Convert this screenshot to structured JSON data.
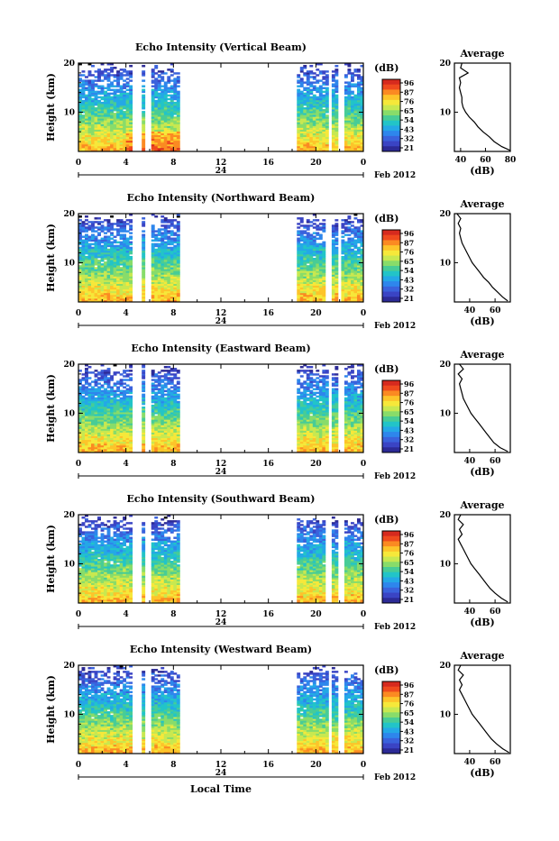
{
  "footer": {
    "xlabel": "Local Time"
  },
  "colorbar": {
    "unit": "(dB)",
    "ticks": [
      "96",
      "87",
      "76",
      "65",
      "54",
      "43",
      "32",
      "21"
    ],
    "colors": [
      "#d62a1e",
      "#ef4a1e",
      "#fb8a22",
      "#fdc42a",
      "#f6e83a",
      "#c8e850",
      "#88dc6a",
      "#48cc96",
      "#22c4c8",
      "#24a8e6",
      "#2e86ec",
      "#3a62dc",
      "#3a44c4",
      "#2c2a96"
    ]
  },
  "chart_data": [
    {
      "type": "heatmap",
      "title": "Echo Intensity (Vertical Beam)",
      "ylabel": "Height (km)",
      "xticks": [
        "0",
        "4",
        "8",
        "12",
        "16",
        "20",
        "0"
      ],
      "date_label": "24",
      "month_label": "Feb 2012",
      "xlim": [
        0,
        24
      ],
      "ylim": [
        2,
        20
      ],
      "yticks": [
        "10",
        "20"
      ],
      "data_gaps_hours": [
        [
          4.5,
          5.2
        ],
        [
          5.5,
          6.0
        ],
        [
          8.5,
          18.5
        ],
        [
          21.0,
          21.4
        ],
        [
          21.9,
          22.3
        ]
      ],
      "average_profile": {
        "title": "Average",
        "xlabel": "(dB)",
        "xlim": [
          35,
          80
        ],
        "xticks": [
          "40",
          "60",
          "80"
        ],
        "height_km": [
          2.2,
          3,
          4,
          5,
          6,
          7,
          8,
          9,
          10,
          11,
          12,
          13,
          14,
          15,
          16,
          17,
          18,
          19,
          20
        ],
        "db": [
          80,
          73,
          67,
          63,
          58,
          54,
          51,
          47,
          44,
          42,
          41,
          41,
          40,
          39,
          40,
          39,
          46,
          40,
          41
        ]
      }
    },
    {
      "type": "heatmap",
      "title": "Echo Intensity (Northward Beam)",
      "ylabel": "Height (km)",
      "xticks": [
        "0",
        "4",
        "8",
        "12",
        "16",
        "20",
        "0"
      ],
      "date_label": "24",
      "month_label": "Feb 2012",
      "xlim": [
        0,
        24
      ],
      "ylim": [
        2,
        20
      ],
      "yticks": [
        "10",
        "20"
      ],
      "data_gaps_hours": [
        [
          4.6,
          5.2
        ],
        [
          5.6,
          6.0
        ],
        [
          8.5,
          18.5
        ],
        [
          20.9,
          21.4
        ],
        [
          21.9,
          22.2
        ]
      ],
      "average_profile": {
        "title": "Average",
        "xlabel": "(dB)",
        "xlim": [
          28,
          72
        ],
        "xticks": [
          "40",
          "60"
        ],
        "height_km": [
          2.2,
          3,
          4,
          5,
          6,
          7,
          8,
          9,
          10,
          11,
          12,
          13,
          14,
          15,
          16,
          17,
          18,
          19,
          20
        ],
        "db": [
          70,
          66,
          62,
          58,
          55,
          51,
          48,
          45,
          42,
          40,
          38,
          36,
          34,
          33,
          32,
          33,
          31,
          33,
          30
        ]
      }
    },
    {
      "type": "heatmap",
      "title": "Echo Intensity (Eastward Beam)",
      "ylabel": "Height (km)",
      "xticks": [
        "0",
        "4",
        "8",
        "12",
        "16",
        "20",
        "0"
      ],
      "date_label": "24",
      "month_label": "Feb 2012",
      "xlim": [
        0,
        24
      ],
      "ylim": [
        2,
        20
      ],
      "yticks": [
        "10",
        "20"
      ],
      "data_gaps_hours": [
        [
          4.6,
          5.2
        ],
        [
          5.5,
          6.0
        ],
        [
          8.5,
          18.5
        ],
        [
          21.0,
          21.4
        ],
        [
          21.9,
          22.3
        ]
      ],
      "average_profile": {
        "title": "Average",
        "xlabel": "(dB)",
        "xlim": [
          28,
          72
        ],
        "xticks": [
          "40",
          "60"
        ],
        "height_km": [
          2.2,
          3,
          4,
          5,
          6,
          7,
          8,
          9,
          10,
          11,
          12,
          13,
          14,
          15,
          16,
          17,
          18,
          19,
          20
        ],
        "db": [
          70,
          64,
          59,
          56,
          53,
          50,
          47,
          44,
          41,
          39,
          37,
          35,
          34,
          33,
          32,
          34,
          31,
          35,
          32
        ]
      }
    },
    {
      "type": "heatmap",
      "title": "Echo Intensity (Southward Beam)",
      "ylabel": "Height (km)",
      "xticks": [
        "0",
        "4",
        "8",
        "12",
        "16",
        "20",
        "0"
      ],
      "date_label": "24",
      "month_label": "Feb 2012",
      "xlim": [
        0,
        24
      ],
      "ylim": [
        2,
        20
      ],
      "yticks": [
        "10",
        "20"
      ],
      "data_gaps_hours": [
        [
          4.6,
          5.2
        ],
        [
          5.6,
          6.0
        ],
        [
          8.5,
          18.5
        ],
        [
          20.9,
          21.4
        ],
        [
          21.9,
          22.3
        ]
      ],
      "average_profile": {
        "title": "Average",
        "xlabel": "(dB)",
        "xlim": [
          28,
          72
        ],
        "xticks": [
          "40",
          "60"
        ],
        "height_km": [
          2.2,
          3,
          4,
          5,
          6,
          7,
          8,
          9,
          10,
          11,
          12,
          13,
          14,
          15,
          16,
          17,
          18,
          19,
          20
        ],
        "db": [
          70,
          65,
          60,
          56,
          53,
          50,
          47,
          44,
          41,
          39,
          37,
          35,
          33,
          31,
          34,
          32,
          35,
          31,
          33
        ]
      }
    },
    {
      "type": "heatmap",
      "title": "Echo Intensity (Westward Beam)",
      "ylabel": "Height (km)",
      "xticks": [
        "0",
        "4",
        "8",
        "12",
        "16",
        "20",
        "0"
      ],
      "date_label": "24",
      "month_label": "Feb 2012",
      "xlim": [
        0,
        24
      ],
      "ylim": [
        2,
        20
      ],
      "yticks": [
        "10",
        "20"
      ],
      "data_gaps_hours": [
        [
          4.6,
          5.2
        ],
        [
          5.6,
          6.0
        ],
        [
          8.5,
          18.5
        ],
        [
          21.0,
          21.4
        ],
        [
          21.9,
          22.3
        ]
      ],
      "average_profile": {
        "title": "Average",
        "xlabel": "(dB)",
        "xlim": [
          28,
          72
        ],
        "xticks": [
          "40",
          "60"
        ],
        "height_km": [
          2.2,
          3,
          4,
          5,
          6,
          7,
          8,
          9,
          10,
          11,
          12,
          13,
          14,
          15,
          16,
          17,
          18,
          19,
          20
        ],
        "db": [
          71,
          66,
          61,
          57,
          54,
          51,
          48,
          45,
          42,
          40,
          38,
          36,
          34,
          32,
          34,
          32,
          35,
          31,
          33
        ]
      }
    }
  ]
}
